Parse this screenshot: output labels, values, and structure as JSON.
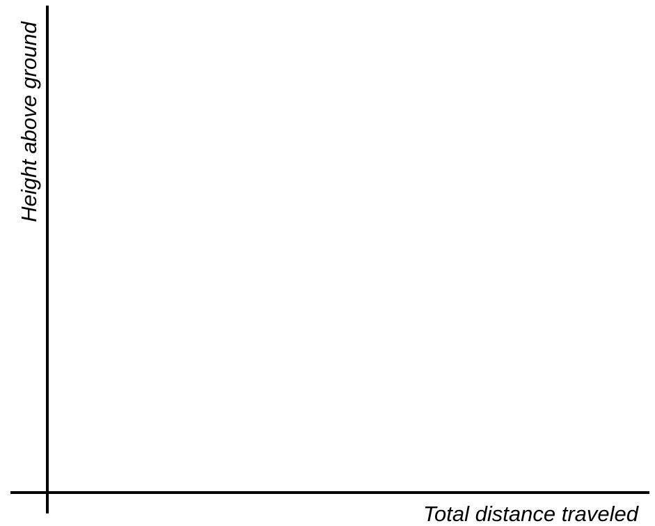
{
  "chart_data": {
    "type": "line",
    "title": "",
    "xlabel": "Total distance traveled",
    "ylabel": "Height above ground",
    "series": [],
    "grid": false,
    "ticks": false,
    "axis_color": "#000000"
  }
}
